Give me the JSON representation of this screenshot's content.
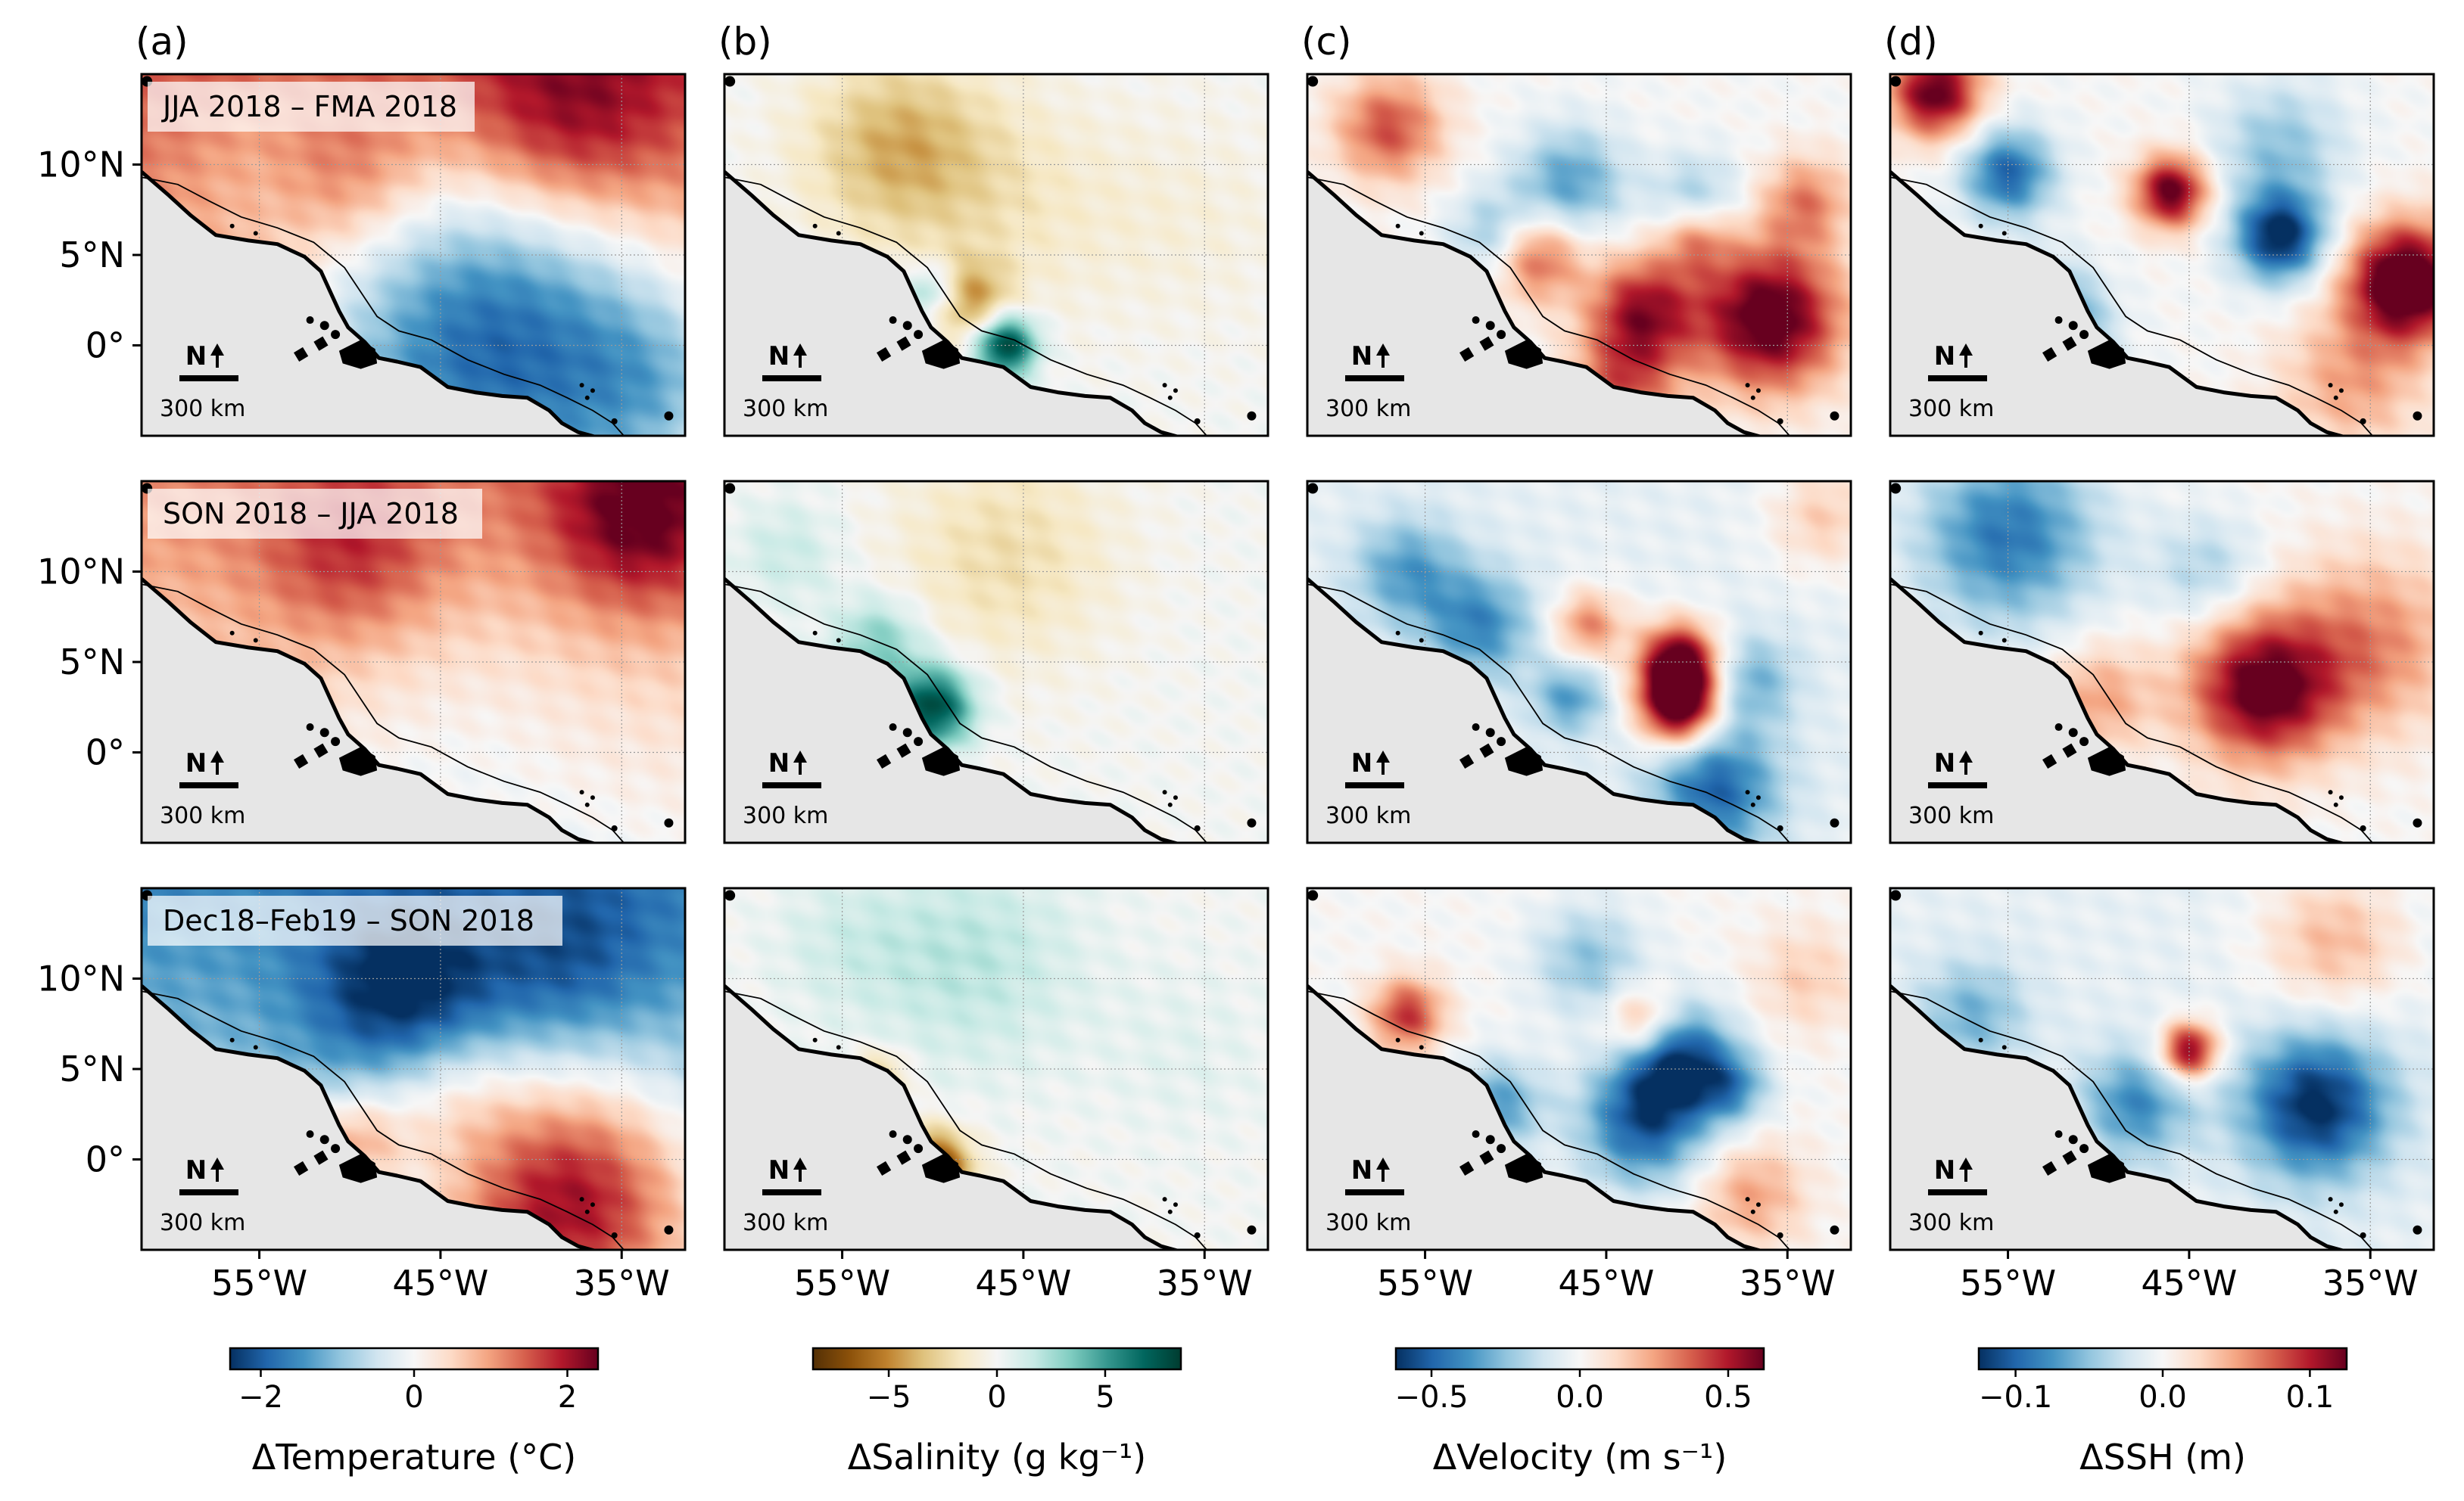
{
  "chart_data": {
    "type": "heatmap",
    "panel_letters": [
      "(a)",
      "(b)",
      "(c)",
      "(d)"
    ],
    "row_titles": [
      "JJA 2018 – FMA 2018",
      "SON 2018 – JJA 2018",
      "Dec18–Feb19 – SON 2018"
    ],
    "lat_ticks": [
      {
        "value": 10,
        "label": "10°N"
      },
      {
        "value": 5,
        "label": "5°N"
      },
      {
        "value": 0,
        "label": "0°"
      }
    ],
    "lon_ticks": [
      {
        "value": -55,
        "label": "55°W"
      },
      {
        "value": -45,
        "label": "45°W"
      },
      {
        "value": -35,
        "label": "35°W"
      }
    ],
    "lon_range": [
      -61.5,
      -31.5
    ],
    "lat_range": [
      -5,
      15
    ],
    "north_arrow": "N",
    "scale_bar": "300 km",
    "variables": [
      {
        "name": "Temperature",
        "cbar_label": "ΔTemperature (°C)",
        "cmap": [
          "#053061",
          "#2166ac",
          "#4393c3",
          "#92c5de",
          "#d1e5f0",
          "#f7f7f7",
          "#fddbc7",
          "#f4a582",
          "#d6604d",
          "#b2182b",
          "#67001f"
        ],
        "vmin": -2.4,
        "vmax": 2.4,
        "ticks": [
          {
            "value": -2,
            "label": "−2"
          },
          {
            "value": 0,
            "label": "0"
          },
          {
            "value": 2,
            "label": "2"
          }
        ]
      },
      {
        "name": "Salinity",
        "cbar_label": "ΔSalinity (g kg⁻¹)",
        "cmap": [
          "#543005",
          "#8c510a",
          "#bf812d",
          "#dfc27d",
          "#f6e8c3",
          "#f5f5f5",
          "#c7eae5",
          "#80cdc1",
          "#35978f",
          "#01665e",
          "#003c30"
        ],
        "vmin": -8.5,
        "vmax": 8.5,
        "ticks": [
          {
            "value": -5,
            "label": "−5"
          },
          {
            "value": 0,
            "label": "0"
          },
          {
            "value": 5,
            "label": "5"
          }
        ]
      },
      {
        "name": "Velocity",
        "cbar_label": "ΔVelocity (m s⁻¹)",
        "cmap": [
          "#053061",
          "#2166ac",
          "#4393c3",
          "#92c5de",
          "#d1e5f0",
          "#f7f7f7",
          "#fddbc7",
          "#f4a582",
          "#d6604d",
          "#b2182b",
          "#67001f"
        ],
        "vmin": -0.62,
        "vmax": 0.62,
        "ticks": [
          {
            "value": -0.5,
            "label": "−0.5"
          },
          {
            "value": 0,
            "label": "0.0"
          },
          {
            "value": 0.5,
            "label": "0.5"
          }
        ]
      },
      {
        "name": "SSH",
        "cbar_label": "ΔSSH (m)",
        "cmap": [
          "#053061",
          "#2166ac",
          "#4393c3",
          "#92c5de",
          "#d1e5f0",
          "#f7f7f7",
          "#fddbc7",
          "#f4a582",
          "#d6604d",
          "#b2182b",
          "#67001f"
        ],
        "vmin": -0.125,
        "vmax": 0.125,
        "ticks": [
          {
            "value": -0.1,
            "label": "−0.1"
          },
          {
            "value": 0,
            "label": "0.0"
          },
          {
            "value": 0.1,
            "label": "0.1"
          }
        ]
      }
    ],
    "fields": [
      [
        {
          "background": 1.0,
          "gradient": [
            0,
            0.6
          ],
          "blobs": [
            {
              "lon": -38,
              "lat": 12,
              "r": 6,
              "v": 1.2
            },
            {
              "lon": -50,
              "lat": 9,
              "r": 4,
              "v": 0.6
            },
            {
              "lon": -42,
              "lat": 1,
              "r": 10,
              "v": -2.6
            },
            {
              "lon": -33,
              "lat": -2,
              "r": 5,
              "v": -0.8
            },
            {
              "lon": -55,
              "lat": 11,
              "r": 5,
              "v": -0.3
            }
          ]
        },
        {
          "background": 0.0,
          "gradient": [
            0,
            0
          ],
          "blobs": [
            {
              "lon": -52,
              "lat": 11,
              "r": 5,
              "v": -3.8
            },
            {
              "lon": -46,
              "lat": 8,
              "r": 6,
              "v": -1.5
            },
            {
              "lon": -48,
              "lat": 2.5,
              "r": 2.2,
              "v": -4.5
            },
            {
              "lon": -46,
              "lat": 0,
              "r": 1.7,
              "v": 8.5
            },
            {
              "lon": -50,
              "lat": 3,
              "r": 1.6,
              "v": 4.0
            },
            {
              "lon": -36,
              "lat": 7,
              "r": 6,
              "v": -0.8
            }
          ]
        },
        {
          "background": 0.0,
          "gradient": [
            0,
            0
          ],
          "blobs": [
            {
              "lon": -36,
              "lat": 1.5,
              "r": 4,
              "v": 0.7
            },
            {
              "lon": -43,
              "lat": 2,
              "r": 3,
              "v": 0.5
            },
            {
              "lon": -49,
              "lat": 5,
              "r": 2.5,
              "v": 0.45
            },
            {
              "lon": -57,
              "lat": 12,
              "r": 3,
              "v": 0.4
            },
            {
              "lon": -47,
              "lat": 9,
              "r": 3,
              "v": -0.35
            },
            {
              "lon": -40,
              "lat": 8,
              "r": 2.5,
              "v": -0.25
            },
            {
              "lon": -34,
              "lat": 8,
              "r": 2.5,
              "v": 0.3
            },
            {
              "lon": -51,
              "lat": 6,
              "r": 2.5,
              "v": -0.3
            },
            {
              "lon": -44,
              "lat": -2,
              "r": 3,
              "v": 0.35
            },
            {
              "lon": -40,
              "lat": 6,
              "r": 2,
              "v": 0.3
            }
          ]
        },
        {
          "background": 0.0,
          "gradient": [
            0,
            0
          ],
          "blobs": [
            {
              "lon": -59,
              "lat": 14,
              "r": 2.5,
              "v": 0.13
            },
            {
              "lon": -46,
              "lat": 8.5,
              "r": 2,
              "v": 0.13
            },
            {
              "lon": -40,
              "lat": 6,
              "r": 2.5,
              "v": -0.13
            },
            {
              "lon": -33,
              "lat": 3.5,
              "r": 3.2,
              "v": 0.16
            },
            {
              "lon": -53,
              "lat": 1,
              "r": 3,
              "v": -0.12
            },
            {
              "lon": -55,
              "lat": 9.5,
              "r": 2.5,
              "v": -0.1
            },
            {
              "lon": -40,
              "lat": 11,
              "r": 3.5,
              "v": -0.05
            },
            {
              "lon": -36,
              "lat": -2,
              "r": 4,
              "v": 0.05
            }
          ]
        }
      ],
      [
        {
          "background": 0.6,
          "gradient": [
            0,
            0.6
          ],
          "blobs": [
            {
              "lon": -34,
              "lat": 13,
              "r": 5,
              "v": 1.5
            },
            {
              "lon": -50,
              "lat": 11,
              "r": 5,
              "v": 0.9
            },
            {
              "lon": -44,
              "lat": 2,
              "r": 8,
              "v": -0.3
            }
          ]
        },
        {
          "background": 0.0,
          "gradient": [
            0,
            0
          ],
          "blobs": [
            {
              "lon": -50,
              "lat": 2.5,
              "r": 2.2,
              "v": 8.0
            },
            {
              "lon": -53,
              "lat": 6,
              "r": 2.5,
              "v": 3.5
            },
            {
              "lon": -46,
              "lat": 11,
              "r": 6,
              "v": -2.2
            },
            {
              "lon": -58,
              "lat": 11,
              "r": 3,
              "v": 1.5
            }
          ]
        },
        {
          "background": -0.05,
          "gradient": [
            0,
            0
          ],
          "blobs": [
            {
              "lon": -41,
              "lat": 5,
              "r": 2.2,
              "v": 0.7
            },
            {
              "lon": -41,
              "lat": 2.5,
              "r": 2.2,
              "v": 0.75
            },
            {
              "lon": -37,
              "lat": 4,
              "r": 2.5,
              "v": -0.25
            },
            {
              "lon": -39,
              "lat": -2,
              "r": 3.5,
              "v": -0.45
            },
            {
              "lon": -52,
              "lat": 7,
              "r": 3,
              "v": -0.35
            },
            {
              "lon": -56,
              "lat": 10,
              "r": 3,
              "v": -0.3
            },
            {
              "lon": -46,
              "lat": 7,
              "r": 2,
              "v": 0.35
            },
            {
              "lon": -47,
              "lat": 3,
              "r": 2,
              "v": -0.3
            },
            {
              "lon": -33,
              "lat": 13,
              "r": 3,
              "v": 0.2
            }
          ]
        },
        {
          "background": 0.0,
          "gradient": [
            0,
            0
          ],
          "blobs": [
            {
              "lon": -41,
              "lat": 3.5,
              "r": 4,
              "v": 0.13
            },
            {
              "lon": -55,
              "lat": 12,
              "r": 5,
              "v": -0.09
            },
            {
              "lon": -35,
              "lat": 6,
              "r": 5,
              "v": 0.06
            },
            {
              "lon": -50,
              "lat": 3,
              "r": 3,
              "v": 0.05
            },
            {
              "lon": -44,
              "lat": 10,
              "r": 3,
              "v": -0.04
            }
          ]
        }
      ],
      [
        {
          "background": -1.0,
          "gradient": [
            0,
            -0.6
          ],
          "blobs": [
            {
              "lon": -47,
              "lat": 9,
              "r": 5,
              "v": -1.5
            },
            {
              "lon": -38,
              "lat": 11,
              "r": 5,
              "v": -0.8
            },
            {
              "lon": -38,
              "lat": -2,
              "r": 7,
              "v": 2.6
            },
            {
              "lon": -50,
              "lat": 1,
              "r": 3,
              "v": 1.4
            },
            {
              "lon": -45,
              "lat": 4,
              "r": 4,
              "v": 0.8
            }
          ]
        },
        {
          "background": 0.0,
          "gradient": [
            0,
            0
          ],
          "blobs": [
            {
              "lon": -50,
              "lat": -0.5,
              "r": 2,
              "v": -8.5
            },
            {
              "lon": -53,
              "lat": 4.5,
              "r": 1.5,
              "v": -3.5
            },
            {
              "lon": -48,
              "lat": 11,
              "r": 6,
              "v": 2.0
            },
            {
              "lon": -55,
              "lat": 12,
              "r": 4,
              "v": 1.0
            },
            {
              "lon": -36,
              "lat": 6,
              "r": 5,
              "v": 0.6
            }
          ]
        },
        {
          "background": 0.0,
          "gradient": [
            0,
            0
          ],
          "blobs": [
            {
              "lon": -41,
              "lat": 5.5,
              "r": 3,
              "v": -0.55
            },
            {
              "lon": -43,
              "lat": 2,
              "r": 3.5,
              "v": -0.5
            },
            {
              "lon": -51,
              "lat": 3,
              "r": 2.5,
              "v": -0.35
            },
            {
              "lon": -56,
              "lat": 8,
              "r": 2,
              "v": 0.45
            },
            {
              "lon": -43,
              "lat": 7.5,
              "r": 2,
              "v": 0.35
            },
            {
              "lon": -37,
              "lat": -2,
              "r": 3,
              "v": 0.25
            },
            {
              "lon": -46,
              "lat": 11,
              "r": 3,
              "v": -0.25
            },
            {
              "lon": -38,
              "lat": 4,
              "r": 2,
              "v": -0.3
            },
            {
              "lon": -34,
              "lat": 10,
              "r": 3,
              "v": 0.15
            }
          ]
        },
        {
          "background": -0.01,
          "gradient": [
            0,
            0
          ],
          "blobs": [
            {
              "lon": -45,
              "lat": 6,
              "r": 1.6,
              "v": 0.13
            },
            {
              "lon": -38,
              "lat": 3,
              "r": 4,
              "v": -0.12
            },
            {
              "lon": -48,
              "lat": 3,
              "r": 3,
              "v": -0.07
            },
            {
              "lon": -37,
              "lat": 12,
              "r": 4,
              "v": 0.05
            },
            {
              "lon": -53,
              "lat": 0,
              "r": 2,
              "v": 0.07
            },
            {
              "lon": -57,
              "lat": 8,
              "r": 3,
              "v": -0.05
            }
          ]
        }
      ]
    ]
  }
}
